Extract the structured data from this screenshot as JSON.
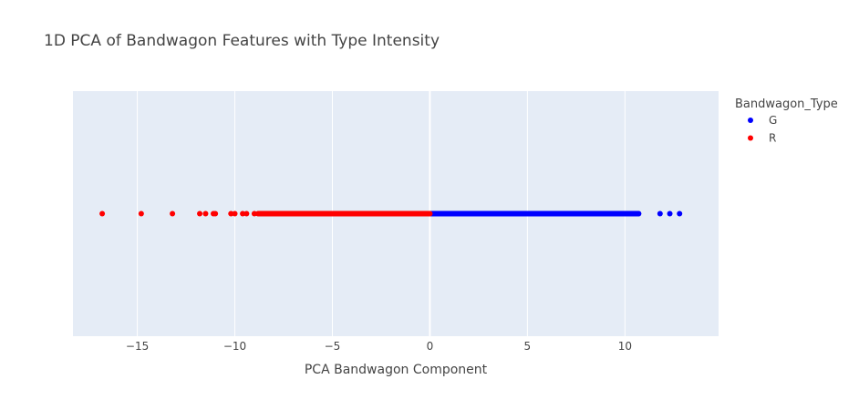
{
  "chart_data": {
    "type": "scatter",
    "title": "1D PCA of Bandwagon Features with Type Intensity",
    "xlabel": "PCA Bandwagon Component",
    "ylabel": "",
    "xlim": [
      -18.3,
      14.8
    ],
    "x_ticks": [
      -15,
      -10,
      -5,
      0,
      5,
      10
    ],
    "x_tick_labels": [
      "−15",
      "−10",
      "−5",
      "0",
      "5",
      "10"
    ],
    "grid": true,
    "legend": {
      "title": "Bandwagon_Type",
      "placement": "right-top"
    },
    "series": [
      {
        "name": "G",
        "color": "#0000ff",
        "x": [
          0.0,
          0.3,
          0.6,
          0.9,
          1.2,
          1.5,
          1.8,
          2.1,
          2.4,
          2.7,
          3.0,
          3.3,
          3.6,
          3.9,
          4.2,
          4.5,
          4.8,
          5.1,
          5.4,
          5.7,
          6.0,
          6.3,
          6.6,
          6.9,
          7.2,
          7.5,
          7.8,
          8.1,
          8.4,
          8.7,
          9.0,
          9.3,
          9.6,
          9.9,
          10.1,
          10.3,
          10.5,
          10.7,
          11.8,
          12.3,
          12.8
        ]
      },
      {
        "name": "R",
        "color": "#ff0000",
        "x": [
          -16.8,
          -14.8,
          -13.2,
          -11.8,
          -11.5,
          -11.1,
          -11.0,
          -10.2,
          -10.0,
          -9.6,
          -9.4,
          -9.0,
          -8.8,
          -8.5,
          -8.2,
          -7.9,
          -7.6,
          -7.3,
          -7.0,
          -6.7,
          -6.4,
          -6.1,
          -5.8,
          -5.5,
          -5.2,
          -4.9,
          -4.6,
          -4.3,
          -4.0,
          -3.7,
          -3.4,
          -3.1,
          -2.8,
          -2.5,
          -2.2,
          -1.9,
          -1.6,
          -1.3,
          -1.0,
          -0.7,
          -0.4,
          -0.1
        ]
      }
    ]
  }
}
